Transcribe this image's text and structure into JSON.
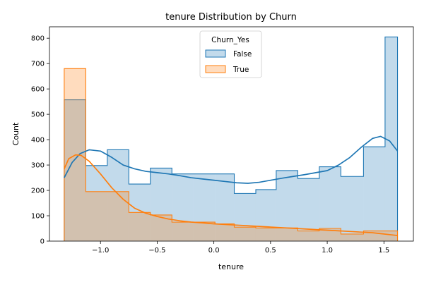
{
  "chart_data": {
    "type": "histogram",
    "title": "tenure Distribution by Churn",
    "xlabel": "tenure",
    "ylabel": "Count",
    "xlim": [
      -1.45,
      1.76
    ],
    "ylim": [
      0,
      845
    ],
    "xticks": [
      -1.0,
      -0.5,
      0.0,
      0.5,
      1.0,
      1.5
    ],
    "xtick_labels": [
      "−1.0",
      "−0.5",
      "0.0",
      "0.5",
      "1.0",
      "1.5"
    ],
    "yticks": [
      0,
      100,
      200,
      300,
      400,
      500,
      600,
      700,
      800
    ],
    "grid": false,
    "legend": {
      "title": "Churn_Yes",
      "placement": "upper center"
    },
    "bin_edges": [
      -1.32,
      -1.13,
      -0.94,
      -0.75,
      -0.56,
      -0.37,
      -0.18,
      0.01,
      0.18,
      0.37,
      0.55,
      0.74,
      0.93,
      1.12,
      1.32,
      1.51,
      1.62
    ],
    "series": [
      {
        "name": "False",
        "color": "#1f77b4",
        "counts": [
          557,
          298,
          360,
          225,
          288,
          265,
          265,
          265,
          188,
          203,
          278,
          247,
          293,
          255,
          372,
          805
        ],
        "kde_x": [
          -1.32,
          -1.25,
          -1.18,
          -1.1,
          -1.0,
          -0.9,
          -0.8,
          -0.7,
          -0.6,
          -0.5,
          -0.4,
          -0.3,
          -0.2,
          -0.1,
          0.0,
          0.1,
          0.2,
          0.3,
          0.4,
          0.5,
          0.6,
          0.7,
          0.8,
          0.9,
          1.0,
          1.1,
          1.2,
          1.3,
          1.4,
          1.47,
          1.55,
          1.62
        ],
        "kde_y": [
          250,
          310,
          345,
          360,
          355,
          330,
          300,
          285,
          275,
          270,
          265,
          258,
          250,
          245,
          240,
          235,
          230,
          228,
          232,
          240,
          248,
          255,
          262,
          270,
          278,
          300,
          330,
          370,
          405,
          413,
          395,
          355
        ]
      },
      {
        "name": "True",
        "color": "#ff7f0e",
        "counts": [
          680,
          195,
          195,
          113,
          103,
          75,
          75,
          68,
          55,
          52,
          52,
          40,
          50,
          28,
          40,
          40
        ],
        "kde_x": [
          -1.32,
          -1.28,
          -1.22,
          -1.17,
          -1.1,
          -1.0,
          -0.9,
          -0.8,
          -0.7,
          -0.6,
          -0.5,
          -0.4,
          -0.3,
          -0.2,
          -0.1,
          0.0,
          0.2,
          0.4,
          0.6,
          0.8,
          1.0,
          1.2,
          1.4,
          1.62
        ],
        "kde_y": [
          285,
          325,
          340,
          338,
          315,
          265,
          210,
          165,
          130,
          110,
          97,
          87,
          80,
          75,
          72,
          68,
          63,
          58,
          53,
          48,
          43,
          38,
          33,
          22
        ]
      }
    ]
  }
}
